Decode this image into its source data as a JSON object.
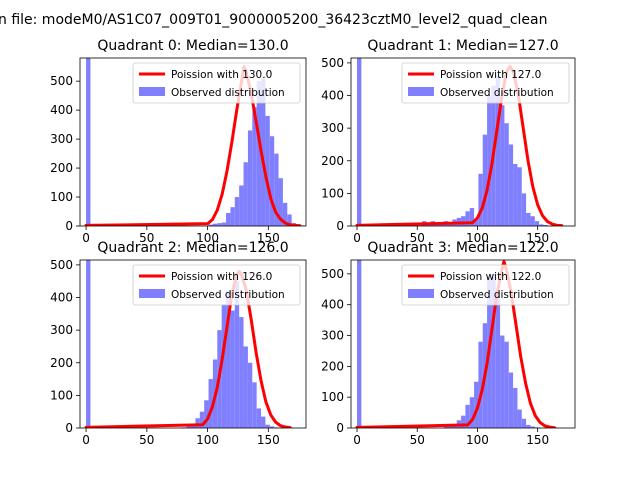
{
  "figure": {
    "suptitle": "n file: modeM0/AS1C07_009T01_9000005200_36423cztM0_level2_quad_clean"
  },
  "colors": {
    "poisson_line": "#ff0000",
    "observed_bars": "#8080ff",
    "axis": "#000000"
  },
  "chart_data": [
    {
      "type": "bar",
      "quadrant": 0,
      "title": "Quadrant 0: Median=130.0",
      "median": 130.0,
      "legend": [
        "Poission with 130.0",
        "Observed distribution"
      ],
      "legend_placement": "top-right",
      "xlim": [
        -5,
        181
      ],
      "ylim": [
        0,
        580
      ],
      "xticks": [
        0,
        50,
        100,
        150
      ],
      "yticks": [
        0,
        100,
        200,
        300,
        400,
        500
      ],
      "bin_width": 3.6,
      "bar_start": 0,
      "bar_values": [
        580,
        0,
        0,
        0,
        0,
        0,
        0,
        0,
        0,
        0,
        0,
        0,
        0,
        0,
        0,
        0,
        0,
        0,
        0,
        0,
        0,
        0,
        0,
        0,
        0,
        0,
        0,
        0,
        5,
        8,
        10,
        12,
        45,
        65,
        100,
        140,
        220,
        330,
        410,
        500,
        510,
        380,
        310,
        250,
        165,
        80,
        40,
        10,
        5,
        2
      ],
      "poisson_line": {
        "x": [
          0,
          100,
          104,
          108,
          112,
          116,
          120,
          124,
          128,
          130,
          132,
          136,
          140,
          144,
          148,
          152,
          156,
          160,
          164,
          168,
          172,
          176
        ],
        "y": [
          2,
          8,
          22,
          55,
          110,
          190,
          290,
          400,
          500,
          550,
          530,
          455,
          360,
          260,
          170,
          95,
          48,
          24,
          10,
          4,
          2,
          1
        ]
      }
    },
    {
      "type": "bar",
      "quadrant": 1,
      "title": "Quadrant 1: Median=127.0",
      "median": 127.0,
      "legend": [
        "Poission with 127.0",
        "Observed distribution"
      ],
      "legend_placement": "top-right",
      "xlim": [
        -5,
        181
      ],
      "ylim": [
        0,
        515
      ],
      "xticks": [
        0,
        50,
        100,
        150
      ],
      "yticks": [
        0,
        100,
        200,
        300,
        400,
        500
      ],
      "bin_width": 3.6,
      "bar_start": 0,
      "bar_values": [
        515,
        0,
        0,
        0,
        0,
        0,
        0,
        0,
        0,
        5,
        0,
        0,
        8,
        5,
        0,
        15,
        8,
        15,
        10,
        5,
        15,
        10,
        20,
        25,
        30,
        45,
        55,
        20,
        160,
        280,
        400,
        430,
        460,
        370,
        315,
        250,
        190,
        180,
        100,
        40,
        30,
        15,
        5,
        3,
        0,
        0,
        0,
        0,
        0,
        0
      ],
      "poisson_line": {
        "x": [
          0,
          96,
          100,
          104,
          108,
          112,
          116,
          120,
          124,
          127,
          130,
          134,
          138,
          142,
          146,
          150,
          154,
          158,
          162,
          166,
          170
        ],
        "y": [
          2,
          10,
          25,
          55,
          110,
          190,
          290,
          390,
          470,
          490,
          470,
          400,
          300,
          200,
          120,
          65,
          32,
          14,
          6,
          2,
          1
        ]
      }
    },
    {
      "type": "bar",
      "quadrant": 2,
      "title": "Quadrant 2: Median=126.0",
      "median": 126.0,
      "legend": [
        "Poission with 126.0",
        "Observed distribution"
      ],
      "legend_placement": "top-right",
      "xlim": [
        -5,
        181
      ],
      "ylim": [
        0,
        515
      ],
      "xticks": [
        0,
        50,
        100,
        150
      ],
      "yticks": [
        0,
        100,
        200,
        300,
        400,
        500
      ],
      "bin_width": 3.6,
      "bar_start": 0,
      "bar_values": [
        515,
        0,
        0,
        0,
        0,
        0,
        0,
        0,
        0,
        0,
        0,
        0,
        0,
        0,
        0,
        0,
        0,
        0,
        0,
        0,
        0,
        0,
        2,
        5,
        10,
        30,
        50,
        85,
        150,
        210,
        300,
        380,
        420,
        360,
        450,
        340,
        250,
        200,
        140,
        60,
        35,
        10,
        5,
        2,
        0,
        0,
        0,
        0,
        0,
        0
      ],
      "poisson_line": {
        "x": [
          0,
          96,
          100,
          104,
          108,
          112,
          116,
          120,
          124,
          126,
          128,
          132,
          136,
          140,
          144,
          148,
          152,
          156,
          160,
          164,
          168
        ],
        "y": [
          2,
          10,
          28,
          65,
          125,
          210,
          310,
          410,
          470,
          480,
          470,
          420,
          330,
          230,
          145,
          80,
          40,
          18,
          7,
          3,
          1
        ]
      }
    },
    {
      "type": "bar",
      "quadrant": 3,
      "title": "Quadrant 3: Median=122.0",
      "median": 122.0,
      "legend": [
        "Poission with 122.0",
        "Observed distribution"
      ],
      "legend_placement": "top-right",
      "xlim": [
        -5,
        181
      ],
      "ylim": [
        0,
        545
      ],
      "xticks": [
        0,
        50,
        100,
        150
      ],
      "yticks": [
        0,
        100,
        200,
        300,
        400,
        500
      ],
      "bin_width": 3.6,
      "bar_start": 0,
      "bar_values": [
        545,
        0,
        0,
        0,
        0,
        0,
        0,
        0,
        0,
        0,
        0,
        0,
        0,
        0,
        0,
        0,
        0,
        0,
        0,
        0,
        5,
        5,
        10,
        25,
        40,
        75,
        100,
        150,
        280,
        340,
        490,
        500,
        440,
        300,
        280,
        180,
        130,
        60,
        30,
        10,
        5,
        2,
        0,
        0,
        0,
        0,
        0,
        0,
        0,
        0
      ],
      "poisson_line": {
        "x": [
          0,
          92,
          96,
          100,
          104,
          108,
          112,
          116,
          120,
          122,
          124,
          128,
          132,
          136,
          140,
          144,
          148,
          152,
          156,
          160,
          164
        ],
        "y": [
          2,
          10,
          28,
          65,
          125,
          210,
          320,
          430,
          510,
          540,
          515,
          440,
          335,
          230,
          145,
          80,
          40,
          18,
          7,
          3,
          1
        ]
      }
    }
  ]
}
